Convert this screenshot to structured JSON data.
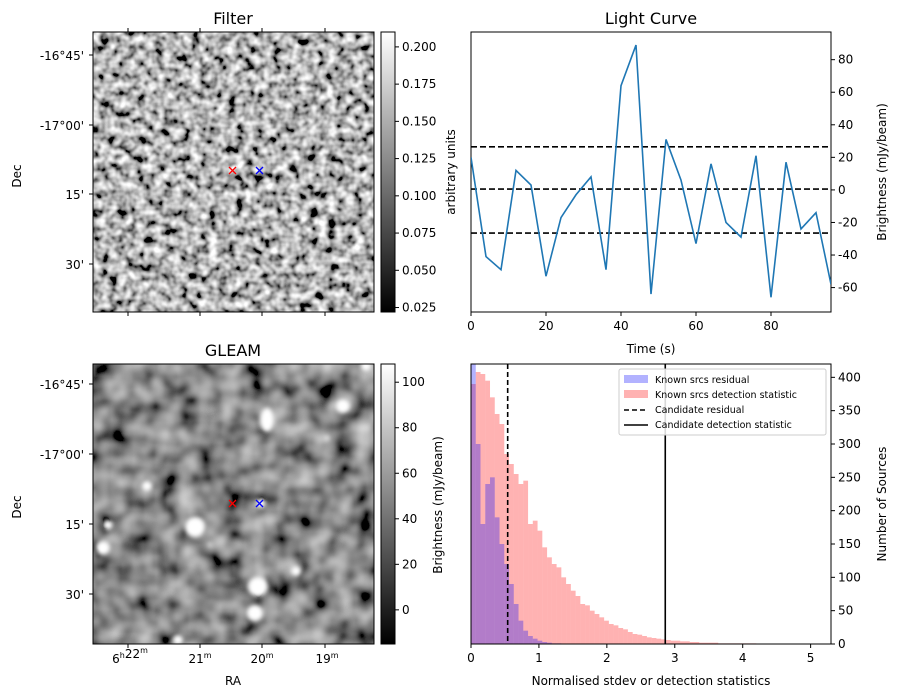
{
  "chart_data": [
    {
      "type": "heatmap",
      "title": "Filter",
      "ylabel": "Dec",
      "y_ticks": [
        "-16°45'",
        "-17°00'",
        "15'",
        "30'"
      ],
      "colorbar": {
        "label": "arbitrary units",
        "ticks": [
          "0.025",
          "0.050",
          "0.075",
          "0.100",
          "0.125",
          "0.150",
          "0.175",
          "0.200"
        ],
        "range": [
          0.022,
          0.21
        ]
      },
      "markers": [
        {
          "symbol": "x",
          "color": "#ff0000"
        },
        {
          "symbol": "x",
          "color": "#0000ff"
        }
      ]
    },
    {
      "type": "line",
      "title": "Light Curve",
      "xlabel": "Time (s)",
      "ylabel": "Brightness (mJy/beam)",
      "xlim": [
        0,
        96
      ],
      "ylim": [
        -75,
        97
      ],
      "x_ticks": [
        "0",
        "20",
        "40",
        "60",
        "80"
      ],
      "y_ticks": [
        "-60",
        "-40",
        "-20",
        "0",
        "20",
        "40",
        "60",
        "80"
      ],
      "x": [
        0,
        4,
        8,
        12,
        16,
        20,
        24,
        28,
        32,
        36,
        40,
        44,
        48,
        52,
        56,
        60,
        64,
        68,
        72,
        76,
        80,
        84,
        88,
        92,
        96
      ],
      "y": [
        20,
        -41,
        -49,
        12,
        3,
        -53,
        -17,
        -3,
        8,
        -49,
        64,
        89,
        -64,
        31,
        6,
        -33,
        16,
        -20,
        -29,
        21,
        -66,
        17,
        -24,
        -14,
        -58
      ],
      "hlines": [
        26.5,
        0.5,
        -26.5
      ],
      "line_color": "#1f77b4"
    },
    {
      "type": "heatmap",
      "title": "GLEAM",
      "xlabel": "RA",
      "ylabel": "Dec",
      "x_ticks": [
        "6h22m",
        "21m",
        "20m",
        "19m"
      ],
      "y_ticks": [
        "-16°45'",
        "-17°00'",
        "15'",
        "30'"
      ],
      "colorbar": {
        "label": "Brightness (mJy/beam)",
        "ticks": [
          "0",
          "20",
          "40",
          "60",
          "80",
          "100"
        ],
        "range": [
          -15,
          108
        ]
      },
      "markers": [
        {
          "symbol": "x",
          "color": "#ff0000"
        },
        {
          "symbol": "x",
          "color": "#0000ff"
        }
      ]
    },
    {
      "type": "bar",
      "xlabel": "Normalised stdev or detection statistics",
      "ylabel": "Number of Sources",
      "xlim": [
        0,
        5.3
      ],
      "ylim": [
        0,
        420
      ],
      "x_ticks": [
        "0",
        "1",
        "2",
        "3",
        "4",
        "5"
      ],
      "y_ticks": [
        "0",
        "50",
        "100",
        "150",
        "200",
        "250",
        "300",
        "350",
        "400"
      ],
      "bin_width": 0.07,
      "series": [
        {
          "name": "Known srcs residual",
          "color": "#0000ff",
          "alpha": 0.3,
          "values": [
            420,
            300,
            180,
            240,
            250,
            190,
            150,
            120,
            90,
            60,
            35,
            20,
            12,
            8,
            5,
            3,
            2,
            1,
            1
          ]
        },
        {
          "name": "Known srcs detection statistic",
          "color": "#ff0000",
          "alpha": 0.3,
          "values": [
            390,
            408,
            405,
            395,
            370,
            345,
            330,
            285,
            270,
            255,
            240,
            245,
            180,
            185,
            170,
            145,
            130,
            120,
            115,
            100,
            90,
            80,
            72,
            60,
            58,
            50,
            45,
            40,
            35,
            30,
            28,
            24,
            22,
            18,
            15,
            14,
            12,
            10,
            9,
            8,
            7,
            6,
            5,
            5,
            4,
            4,
            3,
            3,
            2,
            2,
            2,
            2,
            1,
            1,
            1,
            1,
            1,
            1,
            1,
            1
          ]
        }
      ],
      "vlines": [
        {
          "name": "Candidate residual",
          "x": 0.54,
          "style": "dashed"
        },
        {
          "name": "Candidate detection statistic",
          "x": 2.86,
          "style": "solid"
        }
      ],
      "legend": "top-right"
    }
  ]
}
